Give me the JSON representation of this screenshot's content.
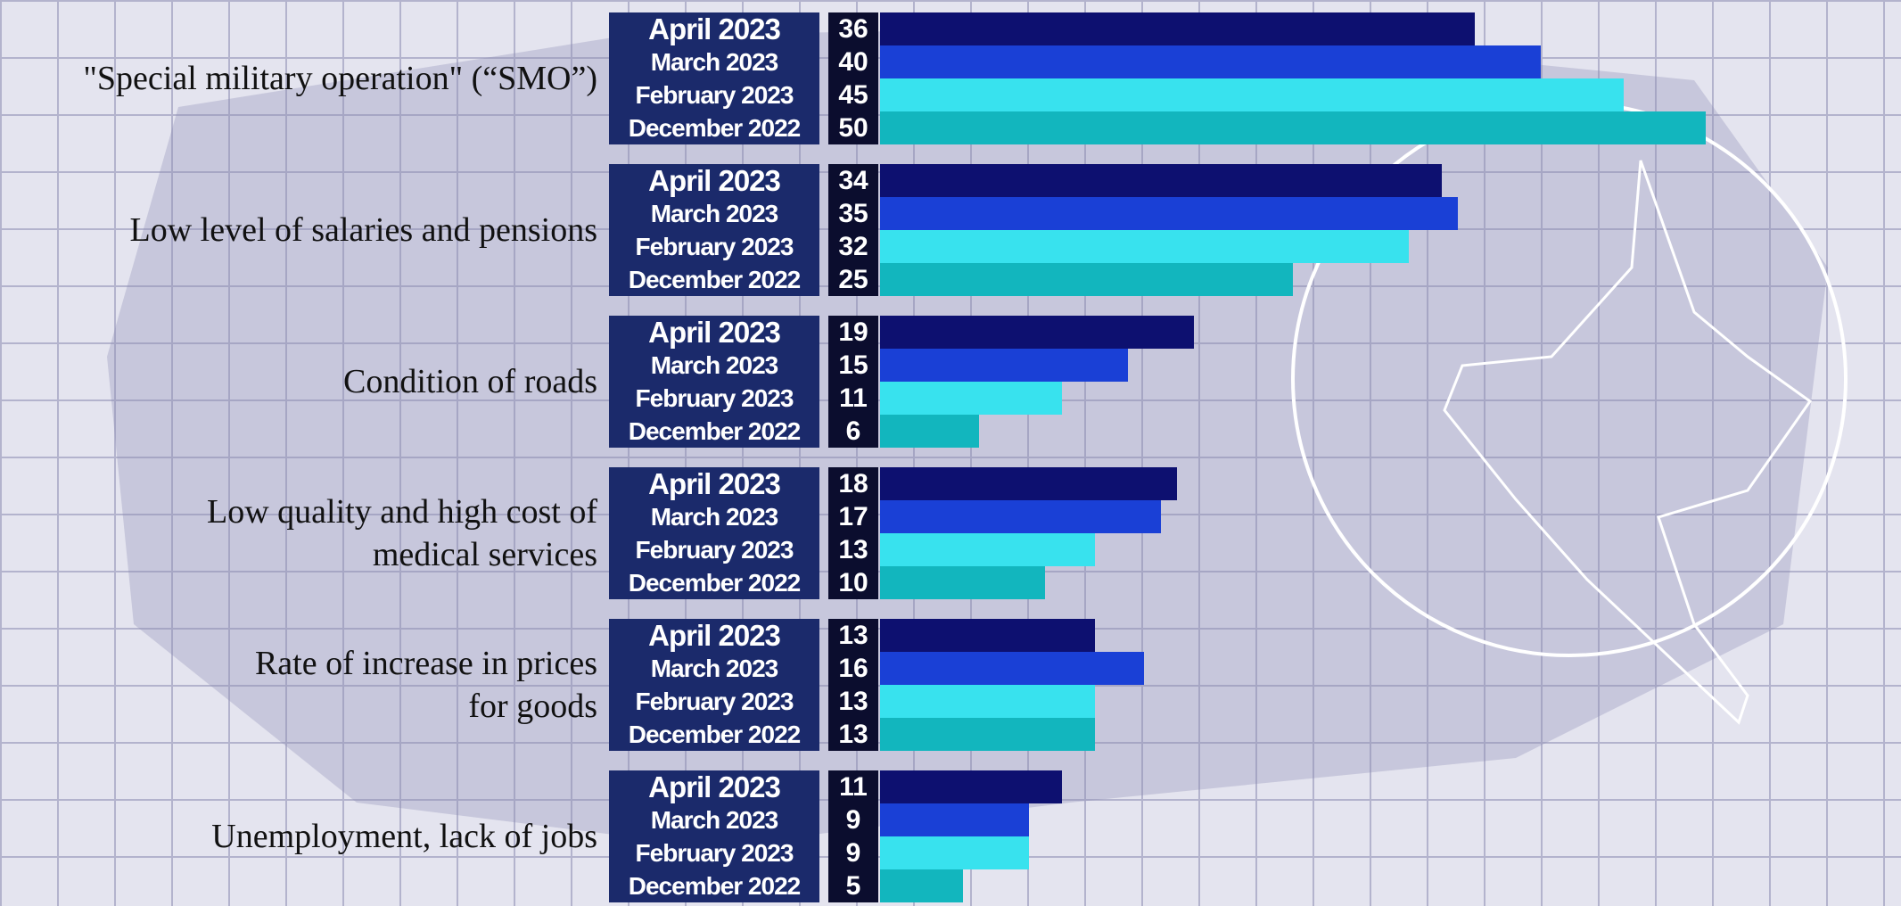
{
  "chart_data": {
    "type": "bar",
    "orientation": "horizontal",
    "categories": [
      "\"Special military operation\" (“SMO”)",
      "Low level of salaries and pensions",
      "Condition of roads",
      "Low quality and high cost of\nmedical services",
      "Rate of increase in prices\nfor goods",
      "Unemployment, lack of jobs"
    ],
    "series": [
      {
        "name": "April 2023",
        "color": "#0d1070",
        "values": [
          36,
          34,
          19,
          18,
          13,
          11
        ]
      },
      {
        "name": "March 2023",
        "color": "#1a40d6",
        "values": [
          40,
          35,
          15,
          17,
          16,
          9
        ]
      },
      {
        "name": "February 2023",
        "color": "#38e2ee",
        "values": [
          45,
          32,
          11,
          13,
          13,
          9
        ]
      },
      {
        "name": "December 2022",
        "color": "#12b6be",
        "values": [
          50,
          25,
          6,
          10,
          13,
          5
        ]
      }
    ]
  }
}
